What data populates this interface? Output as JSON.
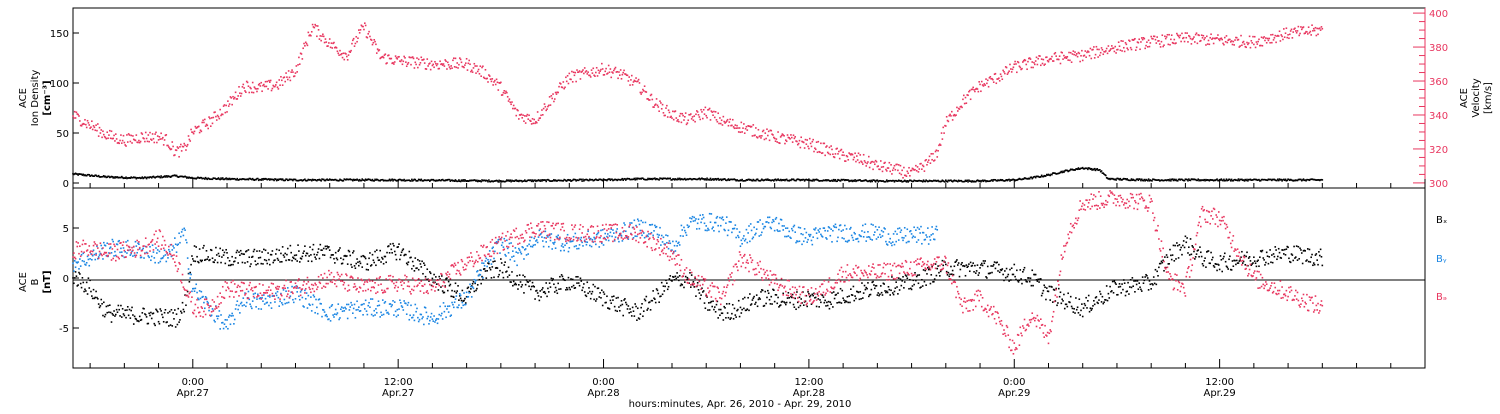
{
  "colors": {
    "black": "#000000",
    "pink": "#e8365f",
    "blue": "#1b86e3",
    "frame": "#000000",
    "background": "#ffffff"
  },
  "xaxis": {
    "ticks": [
      {
        "hour": 24,
        "time": "0:00",
        "date": "Apr.27"
      },
      {
        "hour": 36,
        "time": "12:00",
        "date": "Apr.27"
      },
      {
        "hour": 48,
        "time": "0:00",
        "date": "Apr.28"
      },
      {
        "hour": 60,
        "time": "12:00",
        "date": "Apr.28"
      },
      {
        "hour": 72,
        "time": "0:00",
        "date": "Apr.29"
      },
      {
        "hour": 84,
        "time": "12:00",
        "date": "Apr.29"
      }
    ],
    "title": "hours:minutes, Apr. 26, 2010 - Apr. 29, 2010",
    "range_hours": [
      17,
      96
    ]
  },
  "chart_data": [
    {
      "type": "scatter",
      "panel": "plasma",
      "ylabel_left": [
        "ACE",
        "Ion Density",
        "[cm⁻³]"
      ],
      "ylabel_right": [
        "ACE",
        "Velocity",
        "[km/s]"
      ],
      "left_ylim": [
        -5,
        175
      ],
      "left_ticks": [
        0,
        50,
        100,
        150
      ],
      "right_ylim": [
        297,
        403
      ],
      "right_ticks": [
        300,
        320,
        340,
        360,
        380,
        400
      ],
      "series": [
        {
          "axis": "left",
          "color": "black",
          "points": [
            [
              17,
              9
            ],
            [
              19,
              6
            ],
            [
              21,
              5
            ],
            [
              23,
              7
            ],
            [
              24,
              5
            ],
            [
              26,
              4
            ],
            [
              30,
              3
            ],
            [
              36,
              3
            ],
            [
              42,
              2
            ],
            [
              48,
              3
            ],
            [
              50,
              4
            ],
            [
              54,
              4
            ],
            [
              56,
              3
            ],
            [
              60,
              3
            ],
            [
              64,
              2
            ],
            [
              68,
              2
            ],
            [
              70,
              2
            ],
            [
              72,
              3
            ],
            [
              73,
              5
            ],
            [
              74,
              8
            ],
            [
              75,
              12
            ],
            [
              76,
              15
            ],
            [
              77,
              13
            ],
            [
              77.5,
              4
            ],
            [
              80,
              3
            ],
            [
              84,
              3
            ],
            [
              88,
              3
            ],
            [
              90,
              3
            ]
          ]
        },
        {
          "axis": "right",
          "color": "pink",
          "points": [
            [
              17,
              340
            ],
            [
              18,
              334
            ],
            [
              19,
              328
            ],
            [
              20,
              325
            ],
            [
              21,
              327
            ],
            [
              22,
              327
            ],
            [
              22.5,
              325
            ],
            [
              23,
              318
            ],
            [
              23.5,
              320
            ],
            [
              24,
              330
            ],
            [
              25,
              336
            ],
            [
              26,
              345
            ],
            [
              27,
              357
            ],
            [
              28,
              356
            ],
            [
              29,
              358
            ],
            [
              30,
              366
            ],
            [
              31,
              392
            ],
            [
              32,
              382
            ],
            [
              33,
              375
            ],
            [
              34,
              392
            ],
            [
              35,
              374
            ],
            [
              36,
              372
            ],
            [
              38,
              370
            ],
            [
              40,
              370
            ],
            [
              41,
              365
            ],
            [
              42,
              356
            ],
            [
              43,
              340
            ],
            [
              44,
              337
            ],
            [
              45,
              350
            ],
            [
              46,
              362
            ],
            [
              48,
              367
            ],
            [
              49,
              364
            ],
            [
              50,
              358
            ],
            [
              51,
              347
            ],
            [
              52,
              340
            ],
            [
              53,
              337
            ],
            [
              54,
              342
            ],
            [
              55,
              336
            ],
            [
              56,
              333
            ],
            [
              57,
              330
            ],
            [
              58,
              327
            ],
            [
              60,
              323
            ],
            [
              62,
              316
            ],
            [
              63,
              314
            ],
            [
              64,
              310
            ],
            [
              65,
              308
            ],
            [
              66,
              305
            ],
            [
              67,
              312
            ],
            [
              67.5,
              318
            ],
            [
              68,
              335
            ],
            [
              69,
              348
            ],
            [
              70,
              357
            ],
            [
              71,
              362
            ],
            [
              72,
              368
            ],
            [
              74,
              373
            ],
            [
              76,
              375
            ],
            [
              78,
              380
            ],
            [
              80,
              383
            ],
            [
              82,
              385
            ],
            [
              84,
              384
            ],
            [
              86,
              383
            ],
            [
              88,
              388
            ],
            [
              90,
              390
            ]
          ]
        }
      ]
    },
    {
      "type": "scatter",
      "panel": "magnetic-field",
      "ylabel_left": [
        "ACE",
        "B",
        "[nT]"
      ],
      "ylim": [
        -9,
        9
      ],
      "ticks": [
        -5,
        0,
        5
      ],
      "legend": {
        "placement": "right",
        "entries": [
          "Bₓ",
          "Bᵧ",
          "Bₔ"
        ]
      },
      "series": [
        {
          "name": "Bx",
          "color": "black",
          "points": [
            [
              17,
              0.3
            ],
            [
              18,
              -1
            ],
            [
              19,
              -3.5
            ],
            [
              21,
              -3.8
            ],
            [
              23,
              -4
            ],
            [
              23.5,
              -3
            ],
            [
              24,
              2.5
            ],
            [
              26,
              2
            ],
            [
              28,
              2
            ],
            [
              30,
              2.5
            ],
            [
              32,
              2.5
            ],
            [
              34,
              1.5
            ],
            [
              36,
              2.8
            ],
            [
              38,
              0
            ],
            [
              40,
              -2
            ],
            [
              41,
              0.5
            ],
            [
              42,
              1
            ],
            [
              44,
              -1.5
            ],
            [
              46,
              -0.3
            ],
            [
              48,
              -2
            ],
            [
              49,
              -2.8
            ],
            [
              50,
              -3.5
            ],
            [
              51,
              -2
            ],
            [
              52,
              -0.3
            ],
            [
              53,
              0
            ],
            [
              54,
              -2.5
            ],
            [
              55,
              -3.5
            ],
            [
              56,
              -3
            ],
            [
              57,
              -2
            ],
            [
              58,
              -2
            ],
            [
              59,
              -2.3
            ],
            [
              60,
              -2
            ],
            [
              61,
              -2.3
            ],
            [
              62,
              -1.8
            ],
            [
              64,
              -1
            ],
            [
              66,
              -0.5
            ],
            [
              68,
              1
            ],
            [
              70,
              1
            ],
            [
              72,
              0.5
            ],
            [
              73,
              0
            ],
            [
              74,
              -1.5
            ],
            [
              76,
              -3
            ],
            [
              78,
              -1
            ],
            [
              80,
              -0.5
            ],
            [
              81,
              2
            ],
            [
              82,
              3.5
            ],
            [
              83,
              2
            ],
            [
              84,
              1.5
            ],
            [
              86,
              2
            ],
            [
              88,
              2.5
            ],
            [
              90,
              2
            ]
          ]
        },
        {
          "name": "By",
          "color": "blue",
          "points": [
            [
              17,
              1.5
            ],
            [
              18,
              2
            ],
            [
              19,
              3
            ],
            [
              21,
              2.8
            ],
            [
              22.5,
              2
            ],
            [
              23.5,
              4.5
            ],
            [
              24,
              -1
            ],
            [
              25,
              -3
            ],
            [
              26,
              -5
            ],
            [
              27,
              -2
            ],
            [
              28,
              -2.5
            ],
            [
              30,
              -1.5
            ],
            [
              32,
              -3.5
            ],
            [
              34,
              -3
            ],
            [
              36,
              -3
            ],
            [
              38,
              -4
            ],
            [
              40,
              -2
            ],
            [
              41,
              1
            ],
            [
              42,
              3.5
            ],
            [
              43,
              2
            ],
            [
              44,
              4
            ],
            [
              46,
              3.5
            ],
            [
              48,
              4
            ],
            [
              49,
              4.5
            ],
            [
              50,
              5
            ],
            [
              51,
              4.8
            ],
            [
              52,
              3
            ],
            [
              53,
              5.5
            ],
            [
              54,
              5.6
            ],
            [
              55,
              5.5
            ],
            [
              56,
              4
            ],
            [
              57,
              5
            ],
            [
              58,
              5.5
            ],
            [
              59,
              4.5
            ],
            [
              60,
              4
            ],
            [
              61,
              4.5
            ],
            [
              62,
              4.5
            ],
            [
              64,
              4.5
            ],
            [
              65,
              4
            ],
            [
              66,
              4.3
            ],
            [
              67,
              4.2
            ],
            [
              67.5,
              4.3
            ]
          ]
        },
        {
          "name": "Bz",
          "color": "pink",
          "points": [
            [
              17,
              2.8
            ],
            [
              18,
              3
            ],
            [
              19,
              2.5
            ],
            [
              21,
              3
            ],
            [
              22,
              4
            ],
            [
              23,
              2
            ],
            [
              24,
              -3
            ],
            [
              25,
              -3
            ],
            [
              26,
              -1
            ],
            [
              28,
              -1.5
            ],
            [
              30,
              -1
            ],
            [
              32,
              0
            ],
            [
              34,
              -1
            ],
            [
              36,
              -0.5
            ],
            [
              38,
              -1
            ],
            [
              40,
              1.5
            ],
            [
              42,
              3.5
            ],
            [
              44,
              5
            ],
            [
              46,
              4.5
            ],
            [
              48,
              4.5
            ],
            [
              50,
              4.5
            ],
            [
              51,
              3.5
            ],
            [
              52,
              2.5
            ],
            [
              53,
              0
            ],
            [
              54,
              -1
            ],
            [
              55,
              -2
            ],
            [
              56,
              2
            ],
            [
              57,
              1
            ],
            [
              58,
              -0.5
            ],
            [
              60,
              -2
            ],
            [
              61,
              -1
            ],
            [
              62,
              0.5
            ],
            [
              64,
              0.5
            ],
            [
              66,
              1
            ],
            [
              68,
              1.5
            ],
            [
              69,
              -3
            ],
            [
              70,
              -2
            ],
            [
              71,
              -4
            ],
            [
              72,
              -7
            ],
            [
              73,
              -3.5
            ],
            [
              74,
              -6
            ],
            [
              75,
              4
            ],
            [
              76,
              7.5
            ],
            [
              78,
              8
            ],
            [
              80,
              7.5
            ],
            [
              81,
              0
            ],
            [
              82,
              -1
            ],
            [
              83,
              6.5
            ],
            [
              84,
              6
            ],
            [
              85,
              3
            ],
            [
              86,
              0
            ],
            [
              88,
              -1.5
            ],
            [
              90,
              -3
            ]
          ]
        }
      ]
    }
  ]
}
